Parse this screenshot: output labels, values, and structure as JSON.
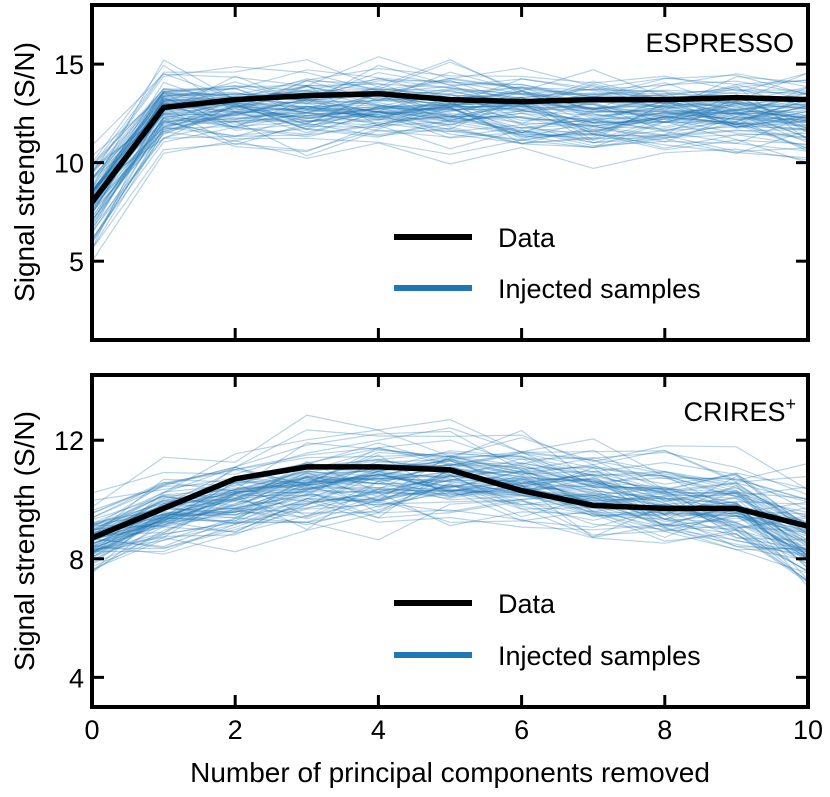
{
  "colors": {
    "data": "#000000",
    "injected": "#1f77b4"
  },
  "xlabel": "Number of principal components removed",
  "chart_data": [
    {
      "type": "line",
      "title": "ESPRESSO",
      "ylabel": "Signal strength (S/N)",
      "xlim": [
        0,
        10
      ],
      "ylim": [
        1.0,
        18.0
      ],
      "xticks": [
        0,
        2,
        4,
        6,
        8,
        10
      ],
      "yticks": [
        5,
        10,
        15
      ],
      "ytick_labels": [
        "5",
        "10",
        "15"
      ],
      "legend": [
        "Data",
        "Injected samples"
      ],
      "legend_loc": "lower-right",
      "x": [
        0,
        1,
        2,
        3,
        4,
        5,
        6,
        7,
        8,
        9,
        10
      ],
      "series": [
        {
          "name": "Data",
          "values": [
            8.0,
            12.8,
            13.2,
            13.4,
            13.5,
            13.2,
            13.1,
            13.2,
            13.2,
            13.3,
            13.2
          ]
        }
      ],
      "injected_samples": {
        "name": "Injected samples",
        "count": 90,
        "seed": 7,
        "mean": [
          8.0,
          12.6,
          12.7,
          12.8,
          12.8,
          12.8,
          12.6,
          12.5,
          12.5,
          12.4,
          12.3
        ],
        "spread": [
          1.1,
          1.0,
          1.0,
          1.0,
          1.0,
          1.0,
          1.0,
          1.0,
          1.0,
          1.0,
          1.1
        ]
      }
    },
    {
      "type": "line",
      "title": "CRIRES",
      "title_sup": "+",
      "ylabel": "Signal strength (S/N)",
      "xlim": [
        0,
        10
      ],
      "ylim": [
        3.0,
        14.2
      ],
      "xticks": [
        0,
        2,
        4,
        6,
        8,
        10
      ],
      "yticks": [
        4,
        8,
        12
      ],
      "ytick_labels": [
        "4",
        "8",
        "12"
      ],
      "legend": [
        "Data",
        "Injected samples"
      ],
      "legend_loc": "lower-right",
      "x": [
        0,
        1,
        2,
        3,
        4,
        5,
        6,
        7,
        8,
        9,
        10
      ],
      "series": [
        {
          "name": "Data",
          "values": [
            8.7,
            9.7,
            10.7,
            11.1,
            11.1,
            11.0,
            10.3,
            9.8,
            9.7,
            9.7,
            9.1
          ]
        }
      ],
      "injected_samples": {
        "name": "Injected samples",
        "count": 90,
        "seed": 11,
        "mean": [
          8.6,
          9.5,
          10.0,
          10.4,
          10.6,
          10.7,
          10.6,
          10.3,
          10.0,
          9.7,
          8.7
        ],
        "spread": [
          0.55,
          0.6,
          0.65,
          0.7,
          0.75,
          0.75,
          0.75,
          0.75,
          0.75,
          0.75,
          0.9
        ]
      }
    }
  ]
}
